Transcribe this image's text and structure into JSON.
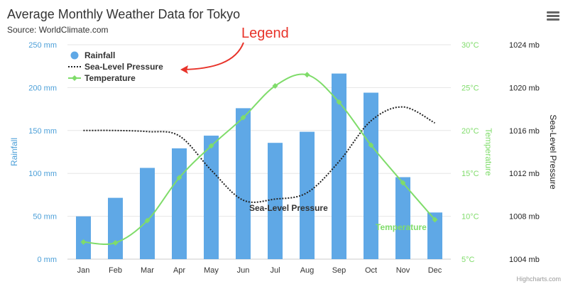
{
  "chart_data": {
    "type": "bar",
    "title": "Average Monthly Weather Data for Tokyo",
    "subtitle": "Source: WorldClimate.com",
    "categories": [
      "Jan",
      "Feb",
      "Mar",
      "Apr",
      "May",
      "Jun",
      "Jul",
      "Aug",
      "Sep",
      "Oct",
      "Nov",
      "Dec"
    ],
    "series": [
      {
        "name": "Rainfall",
        "type": "bar",
        "axis": "rainfall",
        "color": "#5fa8e6",
        "values": [
          49.9,
          71.5,
          106.4,
          129.2,
          144.0,
          176.0,
          135.6,
          148.5,
          216.4,
          194.1,
          95.6,
          54.4
        ]
      },
      {
        "name": "Sea-Level Pressure",
        "type": "line",
        "axis": "pressure",
        "color": "#222222",
        "dash": "dotted",
        "values": [
          1016,
          1016,
          1015.9,
          1015.5,
          1012.3,
          1009.5,
          1009.6,
          1010.2,
          1013.1,
          1016.9,
          1018.2,
          1016.7
        ]
      },
      {
        "name": "Temperature",
        "type": "line",
        "axis": "temperature",
        "color": "#7fdc6a",
        "values": [
          7.0,
          6.9,
          9.5,
          14.5,
          18.2,
          21.5,
          25.2,
          26.5,
          23.3,
          18.3,
          13.9,
          9.6
        ]
      }
    ],
    "axes": {
      "rainfall": {
        "title": "Rainfall",
        "min": 0,
        "max": 250,
        "ticks": [
          "0 mm",
          "50 mm",
          "100 mm",
          "150 mm",
          "200 mm",
          "250 mm"
        ],
        "color": "#4b9fd8",
        "position": "left"
      },
      "temperature": {
        "title": "Temperature",
        "min": 5,
        "max": 30,
        "ticks": [
          "5°C",
          "10°C",
          "15°C",
          "20°C",
          "25°C",
          "30°C"
        ],
        "color": "#7fdc6a",
        "position": "right"
      },
      "pressure": {
        "title": "Sea-Level Pressure",
        "min": 1004,
        "max": 1024,
        "ticks": [
          "1004 mb",
          "1008 mb",
          "1012 mb",
          "1016 mb",
          "1020 mb",
          "1024 mb"
        ],
        "color": "#222222",
        "position": "right"
      }
    },
    "legend": {
      "placement": "top-left",
      "items": [
        "Rainfall",
        "Sea-Level Pressure",
        "Temperature"
      ]
    },
    "series_labels": {
      "pressure": "Sea-Level Pressure",
      "temperature": "Temperature"
    },
    "annotation": "Legend",
    "credits": "Highcharts.com",
    "grid": true
  },
  "icons": {
    "menu": "hamburger-menu-icon"
  },
  "colors": {
    "annotation": "#e8332a",
    "grid": "#e6e6e6"
  }
}
